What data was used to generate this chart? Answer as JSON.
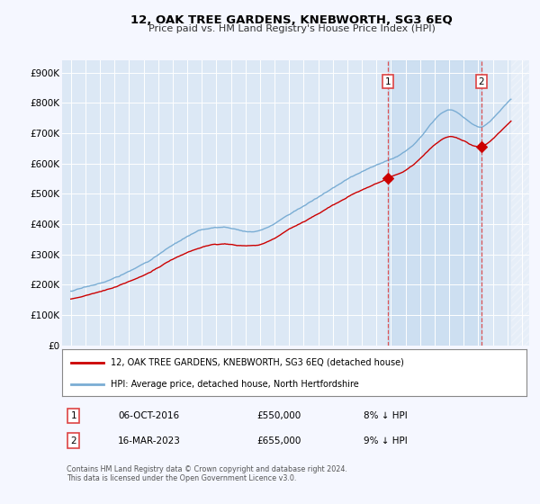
{
  "title": "12, OAK TREE GARDENS, KNEBWORTH, SG3 6EQ",
  "subtitle": "Price paid vs. HM Land Registry's House Price Index (HPI)",
  "legend_label_red": "12, OAK TREE GARDENS, KNEBWORTH, SG3 6EQ (detached house)",
  "legend_label_blue": "HPI: Average price, detached house, North Hertfordshire",
  "transaction1_date": "06-OCT-2016",
  "transaction1_price": "£550,000",
  "transaction1_hpi": "8% ↓ HPI",
  "transaction1_year": 2016.77,
  "transaction2_date": "16-MAR-2023",
  "transaction2_price": "£655,000",
  "transaction2_hpi": "9% ↓ HPI",
  "transaction2_year": 2023.21,
  "footer": "Contains HM Land Registry data © Crown copyright and database right 2024.\nThis data is licensed under the Open Government Licence v3.0.",
  "background_color": "#f5f7ff",
  "plot_bg_color": "#dce8f5",
  "shaded_region_color": "#c8dcf0",
  "red_color": "#cc0000",
  "blue_color": "#7aadd4",
  "grid_color": "#c8d8e8",
  "vline_color": "#dd4444",
  "hatch_color": "#b0b8c8"
}
